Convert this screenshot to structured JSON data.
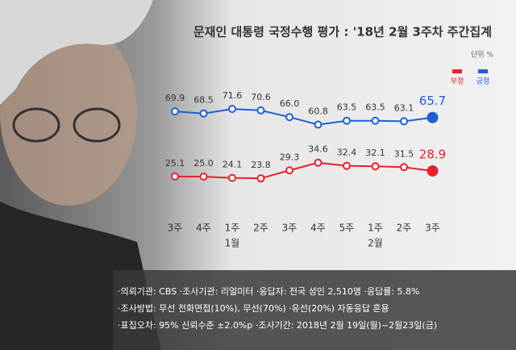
{
  "chart_data": {
    "type": "line",
    "title": "문재인 대통령 국정수행 평가 : '18년 2월 3주차 주간집계",
    "unit": "단위 %",
    "categories": [
      "3주",
      "4주",
      "1주",
      "2주",
      "3주",
      "4주",
      "5주",
      "1주",
      "2주",
      "3주"
    ],
    "months": [
      null,
      null,
      "1월",
      null,
      null,
      null,
      null,
      "2월",
      null,
      null
    ],
    "ylim": [
      5,
      80
    ],
    "legend": "top-right",
    "series": [
      {
        "name": "긍정",
        "color": "#1f5fd6",
        "values": [
          69.9,
          68.5,
          71.6,
          70.6,
          66.0,
          60.8,
          63.5,
          63.5,
          63.1,
          65.7
        ],
        "value_labels": [
          "69.9",
          "68.5",
          "71.6",
          "70.6",
          "66.0",
          "60.8",
          "63.5",
          "63.5",
          "63.1",
          "65.7"
        ]
      },
      {
        "name": "부정",
        "color": "#e8222a",
        "values": [
          25.1,
          25.0,
          24.1,
          23.8,
          29.3,
          34.6,
          32.4,
          32.1,
          31.5,
          28.9
        ],
        "value_labels": [
          "25.1",
          "25.0",
          "24.1",
          "23.8",
          "29.3",
          "34.6",
          "32.4",
          "32.1",
          "31.5",
          "28.9"
        ]
      }
    ],
    "notes": [
      "·의뢰기관: CBS ·조사기관: 리얼미터 ·응답자: 전국 성인 2,510명 ·응답률: 5.8%",
      "·조사방법: 무선 전화면접(10%), 무선(70%) ·유선(20%) 자동응답 혼용",
      "·표집오차: 95% 신뢰수준 ±2.0%p ·조사기간: 2018년 2월 19일(월)~2월23일(금)"
    ]
  }
}
